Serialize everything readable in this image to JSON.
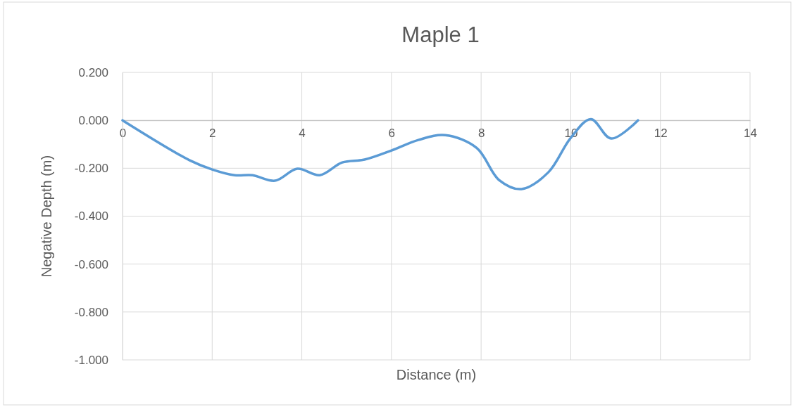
{
  "chart_data": {
    "type": "line",
    "title": "Maple 1",
    "xlabel": "Distance (m)",
    "ylabel": "Negative Depth (m)",
    "series": [
      {
        "color": "#5b9bd5",
        "x": [
          0,
          1.5,
          2,
          2.5,
          2.9,
          3.4,
          3.9,
          4.4,
          4.9,
          5.4,
          6,
          6.6,
          7.2,
          7.9,
          8.4,
          8.9,
          9.5,
          10,
          10.45,
          10.9,
          11.5
        ],
        "values": [
          0,
          -0.167,
          -0.205,
          -0.229,
          -0.229,
          -0.252,
          -0.202,
          -0.229,
          -0.176,
          -0.164,
          -0.126,
          -0.082,
          -0.062,
          -0.115,
          -0.249,
          -0.287,
          -0.217,
          -0.073,
          0.005,
          -0.076,
          0
        ]
      }
    ],
    "xlim": [
      0,
      14
    ],
    "xticks": [
      0,
      2,
      4,
      6,
      8,
      10,
      12,
      14
    ],
    "ylim": [
      -1,
      0.2
    ],
    "yticks": [
      {
        "value": -1,
        "label": "-1.000"
      },
      {
        "value": -0.8,
        "label": "-0.800"
      },
      {
        "value": -0.6,
        "label": "-0.600"
      },
      {
        "value": -0.4,
        "label": "-0.400"
      },
      {
        "value": -0.2,
        "label": "-0.200"
      },
      {
        "value": 0,
        "label": "0.000"
      },
      {
        "value": 0.2,
        "label": "0.200"
      }
    ],
    "grid": true,
    "marker": "none",
    "line_style": "solid"
  }
}
